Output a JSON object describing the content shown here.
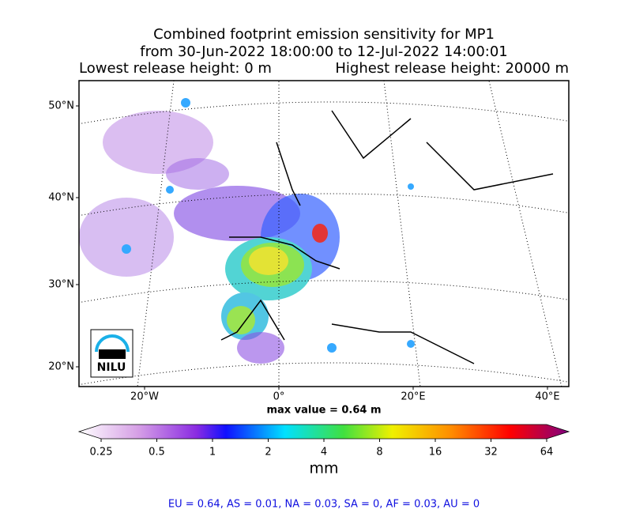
{
  "title": {
    "lines": [
      "Combined footprint emission sensitivity for MP1",
      "from 30-Jun-2022 18:00:00 to 12-Jul-2022 14:00:01"
    ],
    "lowest": "Lowest release height: 0 m",
    "highest": "Highest release height: 20000 m"
  },
  "map": {
    "lat_ticks": [
      {
        "value": 50,
        "label": "50°N"
      },
      {
        "value": 40,
        "label": "40°N"
      },
      {
        "value": 30,
        "label": "30°N"
      },
      {
        "value": 20,
        "label": "20°N"
      }
    ],
    "lon_ticks": [
      {
        "value": -20,
        "label": "20°W"
      },
      {
        "value": 0,
        "label": "0°"
      },
      {
        "value": 20,
        "label": "20°E"
      },
      {
        "value": 40,
        "label": "40°E"
      }
    ],
    "logo": "NILU"
  },
  "max_value": "max value = 0.64 m",
  "colorbar": {
    "log": true,
    "lim": [
      0.25,
      64
    ],
    "ticks": [
      0.25,
      0.5,
      1,
      2,
      4,
      8,
      16,
      32,
      64
    ],
    "unit": "mm"
  },
  "footer": "EU = 0.64,  AS = 0.01,  NA = 0.03,  SA = 0,  AF = 0.03,  AU = 0"
}
